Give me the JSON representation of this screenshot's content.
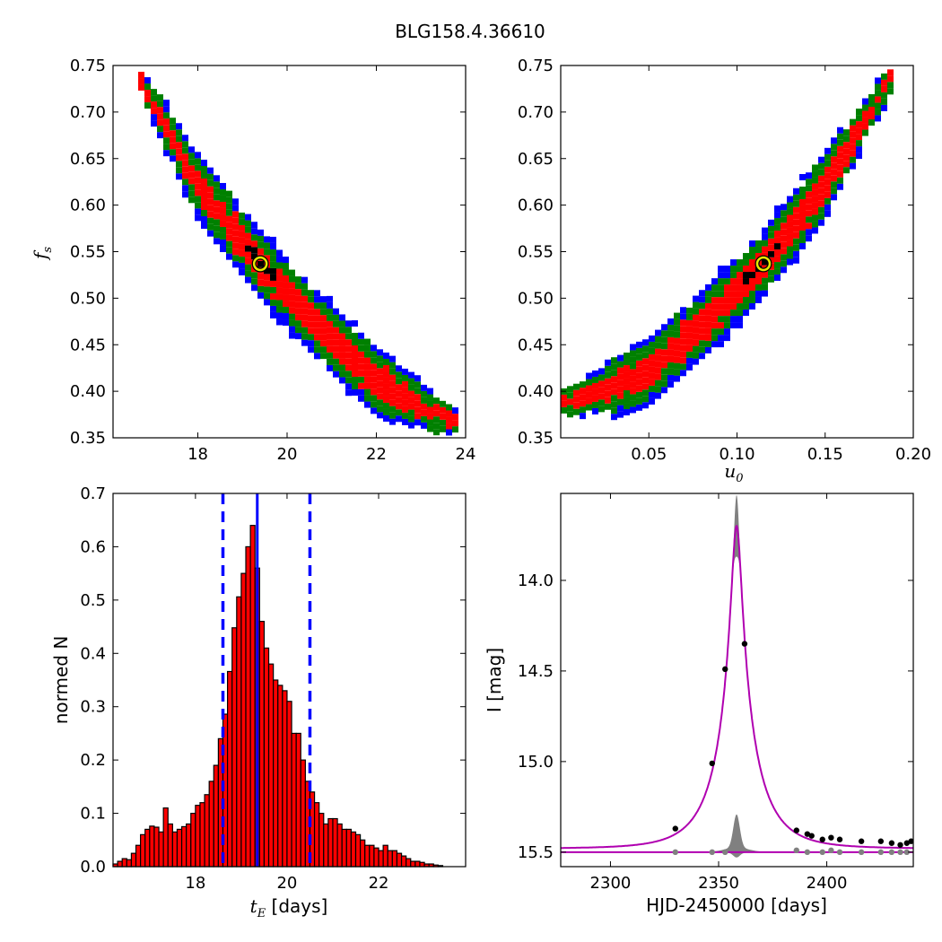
{
  "figure": {
    "title": "BLG158.4.36610"
  },
  "chart_data": [
    {
      "id": "panel-tE-fs",
      "type": "heatmap",
      "xlim": [
        16.1,
        24.0
      ],
      "ylim": [
        0.35,
        0.75
      ],
      "xticks": [
        "18",
        "20",
        "22",
        "24"
      ],
      "yticks": [
        "0.35",
        "0.40",
        "0.45",
        "0.50",
        "0.55",
        "0.60",
        "0.65",
        "0.70",
        "0.75"
      ],
      "xlabel": "",
      "ylabel": "f",
      "ylabel_sub": "s",
      "ridge": [
        [
          16.6,
          0.745
        ],
        [
          18.0,
          0.62
        ],
        [
          19.4,
          0.537
        ],
        [
          20.6,
          0.475
        ],
        [
          22.0,
          0.41
        ],
        [
          23.8,
          0.365
        ]
      ],
      "best_fit": [
        19.4,
        0.537
      ],
      "levels": [
        {
          "label": "outer",
          "color": "#0000ff"
        },
        {
          "label": "mid",
          "color": "#008000"
        },
        {
          "label": "inner",
          "color": "#ff0000"
        },
        {
          "label": "core",
          "color": "#000000"
        }
      ],
      "marker_color": "#e8e800"
    },
    {
      "id": "panel-u0-fs",
      "type": "heatmap",
      "xlim": [
        0.0,
        0.2
      ],
      "ylim": [
        0.35,
        0.75
      ],
      "xticks": [
        "0.05",
        "0.10",
        "0.15",
        "0.20"
      ],
      "yticks": [
        "0.35",
        "0.40",
        "0.45",
        "0.50",
        "0.55",
        "0.60",
        "0.65",
        "0.70",
        "0.75"
      ],
      "xlabel": "u",
      "xlabel_sub": "0",
      "ylabel": "",
      "ridge": [
        [
          0.0,
          0.385
        ],
        [
          0.05,
          0.42
        ],
        [
          0.085,
          0.48
        ],
        [
          0.115,
          0.537
        ],
        [
          0.15,
          0.62
        ],
        [
          0.19,
          0.745
        ]
      ],
      "best_fit": [
        0.115,
        0.537
      ],
      "levels": [
        {
          "label": "outer",
          "color": "#0000ff"
        },
        {
          "label": "mid",
          "color": "#008000"
        },
        {
          "label": "inner",
          "color": "#ff0000"
        },
        {
          "label": "core",
          "color": "#000000"
        }
      ],
      "marker_color": "#e8e800"
    },
    {
      "id": "panel-hist",
      "type": "bar",
      "xlim": [
        16.2,
        23.9
      ],
      "ylim": [
        0.0,
        0.7
      ],
      "xticks": [
        "18",
        "20",
        "22"
      ],
      "yticks": [
        "0.0",
        "0.1",
        "0.2",
        "0.3",
        "0.4",
        "0.5",
        "0.6",
        "0.7"
      ],
      "xlabel": "t",
      "xlabel_sub": "E",
      "xlabel_unit": "[days]",
      "ylabel": "normed N",
      "bin_start": 16.2,
      "bin_width": 0.1,
      "values": [
        0.005,
        0.01,
        0.015,
        0.013,
        0.025,
        0.04,
        0.06,
        0.07,
        0.076,
        0.074,
        0.065,
        0.11,
        0.08,
        0.065,
        0.07,
        0.075,
        0.08,
        0.1,
        0.115,
        0.12,
        0.135,
        0.16,
        0.19,
        0.24,
        0.286,
        0.366,
        0.448,
        0.506,
        0.55,
        0.6,
        0.64,
        0.56,
        0.46,
        0.41,
        0.38,
        0.35,
        0.34,
        0.33,
        0.31,
        0.25,
        0.25,
        0.2,
        0.16,
        0.14,
        0.12,
        0.1,
        0.08,
        0.09,
        0.09,
        0.08,
        0.07,
        0.07,
        0.065,
        0.06,
        0.05,
        0.04,
        0.04,
        0.035,
        0.03,
        0.04,
        0.03,
        0.03,
        0.025,
        0.02,
        0.015,
        0.01,
        0.01,
        0.008,
        0.005,
        0.005,
        0.003,
        0.002
      ],
      "median": 19.35,
      "interval": [
        18.6,
        20.5
      ],
      "bar_color": "#ff0000",
      "line_color": "#0000ff"
    },
    {
      "id": "panel-lightcurve",
      "type": "line",
      "xlim": [
        2277,
        2440
      ],
      "ylim": [
        15.58,
        13.52
      ],
      "xticks": [
        "2300",
        "2350",
        "2400"
      ],
      "yticks": [
        "14.0",
        "14.5",
        "15.0",
        "15.5"
      ],
      "xlabel": "HJD-2450000 [days]",
      "ylabel": "I [mag]",
      "model": {
        "t0": 2358.3,
        "tE": 19.4,
        "u0": 0.115,
        "fs": 0.537,
        "I_base": 15.48
      },
      "model_color": "#b000b0",
      "data_points": [
        [
          2330,
          15.37
        ],
        [
          2347,
          15.01
        ],
        [
          2353,
          14.49
        ],
        [
          2362,
          14.35
        ],
        [
          2386,
          15.38
        ],
        [
          2391,
          15.4
        ],
        [
          2393,
          15.41
        ],
        [
          2398,
          15.43
        ],
        [
          2402,
          15.42
        ],
        [
          2406,
          15.43
        ],
        [
          2416,
          15.44
        ],
        [
          2425,
          15.44
        ],
        [
          2430,
          15.45
        ],
        [
          2434,
          15.46
        ],
        [
          2437,
          15.45
        ],
        [
          2439,
          15.44
        ]
      ],
      "residual_points": [
        [
          2330,
          15.5
        ],
        [
          2347,
          15.5
        ],
        [
          2353,
          15.5
        ],
        [
          2386,
          15.49
        ],
        [
          2391,
          15.5
        ],
        [
          2398,
          15.5
        ],
        [
          2402,
          15.49
        ],
        [
          2406,
          15.5
        ],
        [
          2416,
          15.5
        ],
        [
          2425,
          15.5
        ],
        [
          2430,
          15.5
        ],
        [
          2434,
          15.5
        ],
        [
          2437,
          15.5
        ]
      ],
      "data_color": "#000000",
      "residual_color": "#808080"
    }
  ]
}
